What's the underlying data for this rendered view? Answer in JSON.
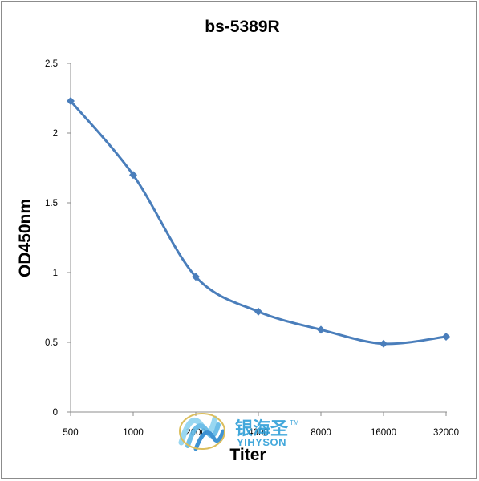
{
  "chart_data": {
    "type": "line",
    "title": "bs-5389R",
    "xlabel": "Titer",
    "ylabel": "OD450nm",
    "categories": [
      "500",
      "1000",
      "2000",
      "4000",
      "8000",
      "16000",
      "32000"
    ],
    "series": [
      {
        "values": [
          2.23,
          1.7,
          0.97,
          0.72,
          0.59,
          0.49,
          0.54
        ]
      }
    ],
    "ylim": [
      0,
      2.5
    ],
    "yticks": [
      "0",
      "0.5",
      "1",
      "1.5",
      "2",
      "2.5"
    ],
    "grid": false,
    "legend": "none",
    "line_color": "#4a7ebb"
  },
  "watermark": {
    "name_cn": "银海圣",
    "name_en": "YIHYSON",
    "trademark": "TM"
  }
}
